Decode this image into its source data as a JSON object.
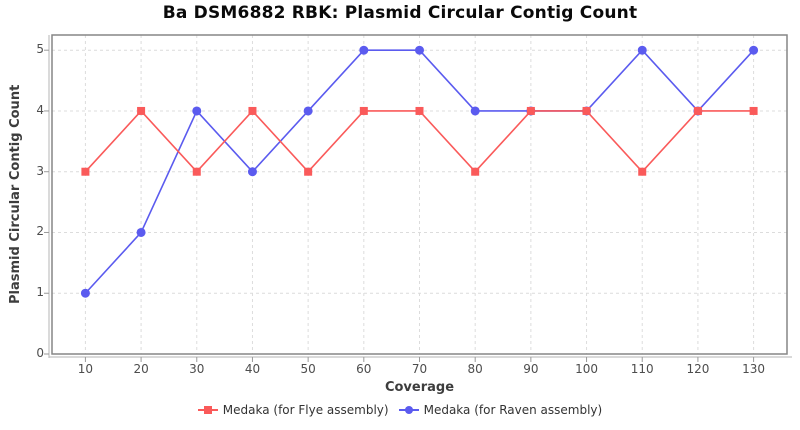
{
  "chart_data": {
    "type": "line",
    "title": "Ba DSM6882 RBK: Plasmid Circular Contig Count",
    "xlabel": "Coverage",
    "ylabel": "Plasmid Circular Contig Count",
    "x": [
      10,
      20,
      30,
      40,
      50,
      60,
      70,
      80,
      90,
      100,
      110,
      120,
      130
    ],
    "xticks": [
      10,
      20,
      30,
      40,
      50,
      60,
      70,
      80,
      90,
      100,
      110,
      120,
      130
    ],
    "yticks": [
      0,
      1,
      2,
      3,
      4,
      5
    ],
    "xlim": [
      4,
      136
    ],
    "ylim": [
      0,
      5.25
    ],
    "grid": "dashed",
    "legend_position": "bottom-center",
    "series": [
      {
        "name": "Medaka (for Flye assembly)",
        "marker": "square",
        "color": "#fa5a5a",
        "values": [
          3,
          4,
          3,
          4,
          3,
          4,
          4,
          3,
          4,
          4,
          3,
          4,
          4
        ]
      },
      {
        "name": "Medaka (for Raven assembly)",
        "marker": "circle",
        "color": "#5b5bef",
        "values": [
          1,
          2,
          4,
          3,
          4,
          5,
          5,
          4,
          4,
          4,
          5,
          4,
          5
        ]
      }
    ],
    "colors": {
      "background": "#ffffff",
      "grid": "#dcdcdc",
      "frame": "#868686",
      "axis_line": "#c2c2c2",
      "tick": "#9a9a9a",
      "tick_label": "#4d4d4d",
      "axis_label": "#3d3d3d",
      "title": "#0a0a0a",
      "legend_text": "#333333"
    }
  }
}
